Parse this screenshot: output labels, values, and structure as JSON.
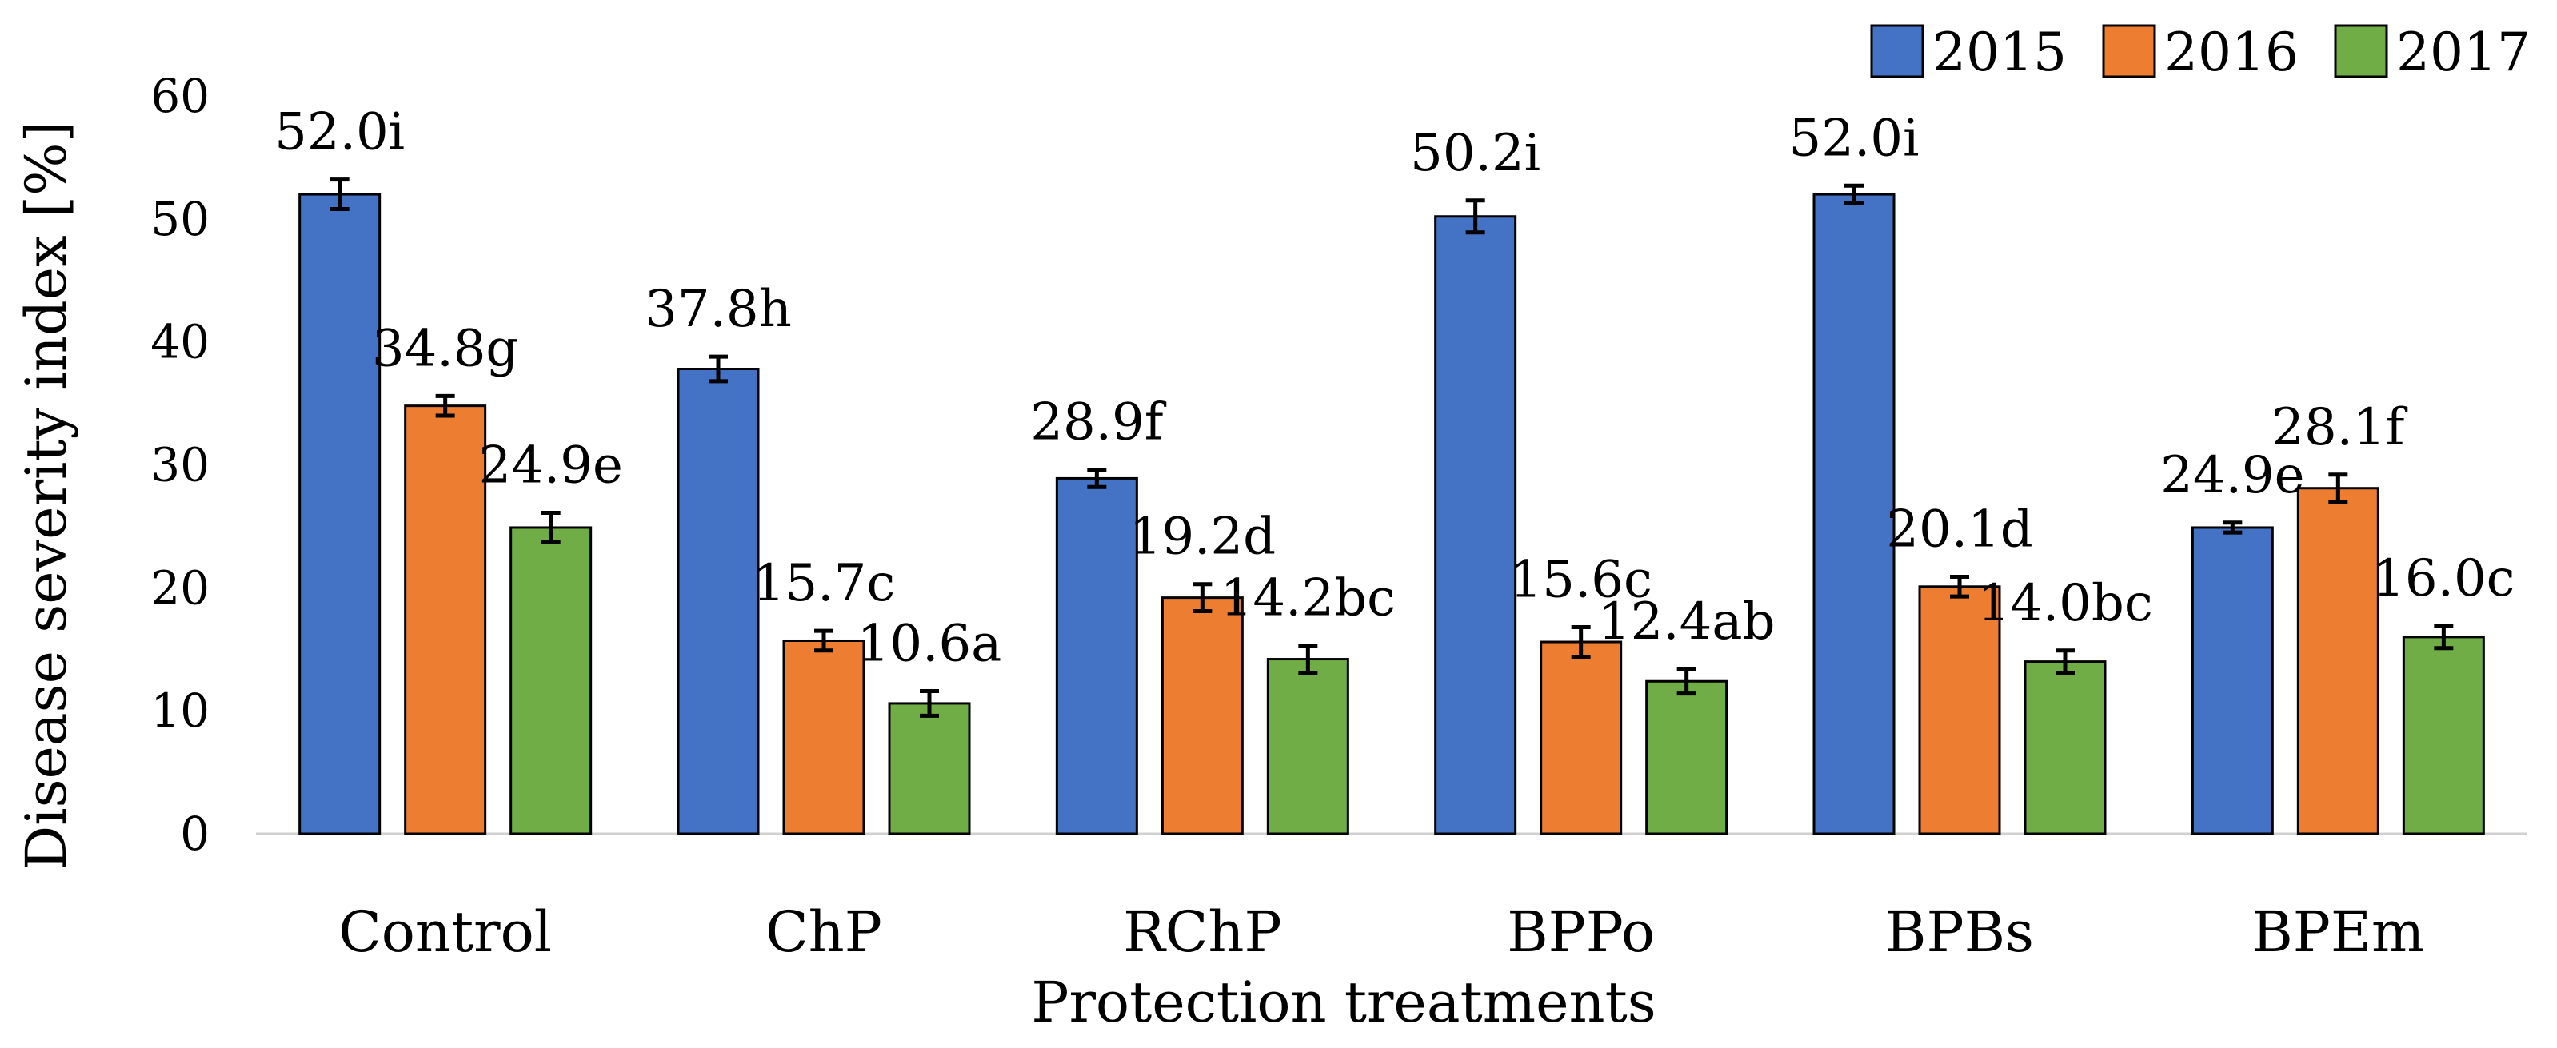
{
  "colors": {
    "2015": "#4472C4",
    "2016": "#ED7D31",
    "2017": "#70AD47",
    "axis": "#d0d0d0",
    "error": "#000000"
  },
  "chart_data": {
    "type": "bar",
    "xlabel": "Protection treatments",
    "ylabel": "Disease severity index [%]",
    "ylim": [
      0,
      60
    ],
    "yticks": [
      0,
      10,
      20,
      30,
      40,
      50,
      60
    ],
    "grid": false,
    "legend_position": "top-right",
    "categories": [
      "Control",
      "ChP",
      "RChP",
      "BPPo",
      "BPBs",
      "BPEm"
    ],
    "series": [
      {
        "name": "2015",
        "values": [
          52.0,
          37.8,
          28.9,
          50.2,
          52.0,
          24.9
        ],
        "errors": [
          1.2,
          1.0,
          0.7,
          1.3,
          0.7,
          0.4
        ],
        "labels": [
          "52.0i",
          "37.8h",
          "28.9f",
          "50.2i",
          "52.0i",
          "24.9e"
        ]
      },
      {
        "name": "2016",
        "values": [
          34.8,
          15.7,
          19.2,
          15.6,
          20.1,
          28.1
        ],
        "errors": [
          0.8,
          0.8,
          1.1,
          1.2,
          0.8,
          1.1
        ],
        "labels": [
          "34.8g",
          "15.7c",
          "19.2d",
          "15.6c",
          "20.1d",
          "28.1f"
        ]
      },
      {
        "name": "2017",
        "values": [
          24.9,
          10.6,
          14.2,
          12.4,
          14.0,
          16.0
        ],
        "errors": [
          1.2,
          1.0,
          1.1,
          1.0,
          0.9,
          0.9
        ],
        "labels": [
          "24.9e",
          "10.6a",
          "14.2bc",
          "12.4ab",
          "14.0bc",
          "16.0c"
        ]
      }
    ]
  }
}
